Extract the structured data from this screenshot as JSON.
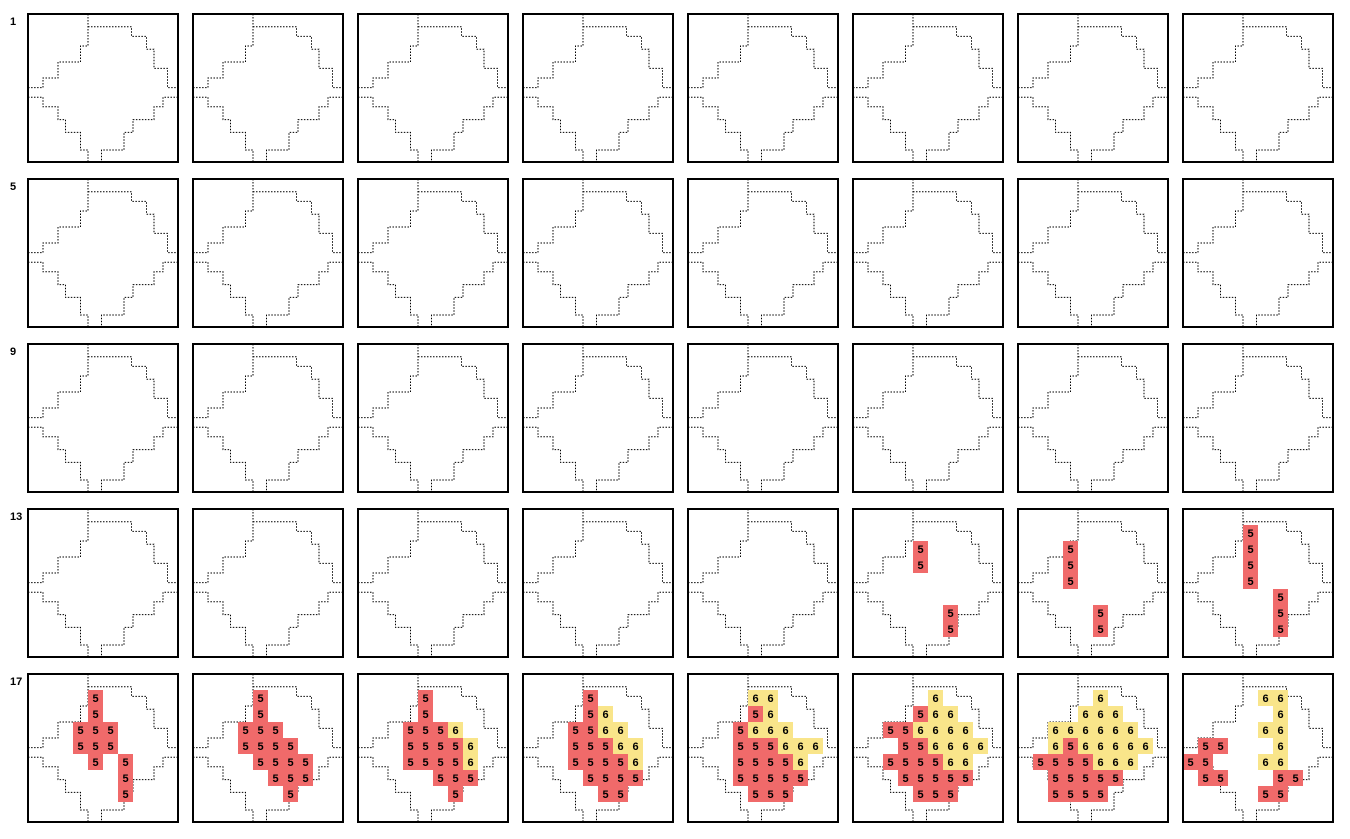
{
  "row_labels": [
    "1",
    "5",
    "9",
    "13",
    "17"
  ],
  "colors": {
    "5": "#f06a6a",
    "6": "#f9e58a",
    "frame": "#000000",
    "outline": "#000000"
  },
  "panels": [
    {
      "cells": []
    },
    {
      "cells": []
    },
    {
      "cells": []
    },
    {
      "cells": []
    },
    {
      "cells": []
    },
    {
      "cells": []
    },
    {
      "cells": []
    },
    {
      "cells": []
    },
    {
      "cells": []
    },
    {
      "cells": []
    },
    {
      "cells": []
    },
    {
      "cells": []
    },
    {
      "cells": []
    },
    {
      "cells": []
    },
    {
      "cells": []
    },
    {
      "cells": []
    },
    {
      "cells": []
    },
    {
      "cells": []
    },
    {
      "cells": []
    },
    {
      "cells": []
    },
    {
      "cells": []
    },
    {
      "cells": []
    },
    {
      "cells": []
    },
    {
      "cells": []
    },
    {
      "cells": []
    },
    {
      "cells": []
    },
    {
      "cells": []
    },
    {
      "cells": []
    },
    {
      "cells": []
    },
    {
      "cells": [
        [
          4,
          2,
          5
        ],
        [
          4,
          3,
          5
        ],
        [
          6,
          6,
          5
        ],
        [
          6,
          7,
          5
        ]
      ]
    },
    {
      "cells": [
        [
          3,
          2,
          5
        ],
        [
          3,
          3,
          5
        ],
        [
          3,
          4,
          5
        ],
        [
          5,
          6,
          5
        ],
        [
          5,
          7,
          5
        ]
      ]
    },
    {
      "cells": [
        [
          4,
          1,
          5
        ],
        [
          4,
          2,
          5
        ],
        [
          4,
          3,
          5
        ],
        [
          4,
          4,
          5
        ],
        [
          6,
          5,
          5
        ],
        [
          6,
          6,
          5
        ],
        [
          6,
          7,
          5
        ]
      ]
    },
    {
      "cells": [
        [
          4,
          1,
          5
        ],
        [
          4,
          2,
          5
        ],
        [
          3,
          3,
          5
        ],
        [
          4,
          3,
          5
        ],
        [
          5,
          3,
          5
        ],
        [
          3,
          4,
          5
        ],
        [
          4,
          4,
          5
        ],
        [
          5,
          4,
          5
        ],
        [
          4,
          5,
          5
        ],
        [
          6,
          5,
          5
        ],
        [
          6,
          6,
          5
        ],
        [
          6,
          7,
          5
        ]
      ]
    },
    {
      "cells": [
        [
          4,
          1,
          5
        ],
        [
          4,
          2,
          5
        ],
        [
          3,
          3,
          5
        ],
        [
          4,
          3,
          5
        ],
        [
          5,
          3,
          5
        ],
        [
          3,
          4,
          5
        ],
        [
          4,
          4,
          5
        ],
        [
          5,
          4,
          5
        ],
        [
          6,
          4,
          5
        ],
        [
          4,
          5,
          5
        ],
        [
          5,
          5,
          5
        ],
        [
          6,
          5,
          5
        ],
        [
          7,
          5,
          5
        ],
        [
          5,
          6,
          5
        ],
        [
          6,
          6,
          5
        ],
        [
          7,
          6,
          5
        ],
        [
          6,
          7,
          5
        ]
      ]
    },
    {
      "cells": [
        [
          4,
          1,
          5
        ],
        [
          4,
          2,
          5
        ],
        [
          3,
          3,
          5
        ],
        [
          4,
          3,
          5
        ],
        [
          5,
          3,
          5
        ],
        [
          6,
          3,
          6
        ],
        [
          3,
          4,
          5
        ],
        [
          4,
          4,
          5
        ],
        [
          5,
          4,
          5
        ],
        [
          6,
          4,
          5
        ],
        [
          7,
          4,
          6
        ],
        [
          3,
          5,
          5
        ],
        [
          4,
          5,
          5
        ],
        [
          5,
          5,
          5
        ],
        [
          6,
          5,
          5
        ],
        [
          7,
          5,
          6
        ],
        [
          5,
          6,
          5
        ],
        [
          6,
          6,
          5
        ],
        [
          7,
          6,
          5
        ],
        [
          6,
          7,
          5
        ]
      ]
    },
    {
      "cells": [
        [
          4,
          1,
          5
        ],
        [
          4,
          2,
          5
        ],
        [
          5,
          2,
          6
        ],
        [
          3,
          3,
          5
        ],
        [
          4,
          3,
          5
        ],
        [
          5,
          3,
          6
        ],
        [
          6,
          3,
          6
        ],
        [
          3,
          4,
          5
        ],
        [
          4,
          4,
          5
        ],
        [
          5,
          4,
          5
        ],
        [
          6,
          4,
          6
        ],
        [
          7,
          4,
          6
        ],
        [
          3,
          5,
          5
        ],
        [
          4,
          5,
          5
        ],
        [
          5,
          5,
          5
        ],
        [
          6,
          5,
          5
        ],
        [
          7,
          5,
          6
        ],
        [
          4,
          6,
          5
        ],
        [
          5,
          6,
          5
        ],
        [
          6,
          6,
          5
        ],
        [
          7,
          6,
          5
        ],
        [
          5,
          7,
          5
        ],
        [
          6,
          7,
          5
        ]
      ]
    },
    {
      "cells": [
        [
          4,
          1,
          6
        ],
        [
          5,
          1,
          6
        ],
        [
          4,
          2,
          5
        ],
        [
          5,
          2,
          6
        ],
        [
          3,
          3,
          5
        ],
        [
          4,
          3,
          6
        ],
        [
          5,
          3,
          6
        ],
        [
          6,
          3,
          6
        ],
        [
          3,
          4,
          5
        ],
        [
          4,
          4,
          5
        ],
        [
          5,
          4,
          5
        ],
        [
          6,
          4,
          6
        ],
        [
          7,
          4,
          6
        ],
        [
          8,
          4,
          6
        ],
        [
          3,
          5,
          5
        ],
        [
          4,
          5,
          5
        ],
        [
          5,
          5,
          5
        ],
        [
          6,
          5,
          5
        ],
        [
          7,
          5,
          6
        ],
        [
          3,
          6,
          5
        ],
        [
          4,
          6,
          5
        ],
        [
          5,
          6,
          5
        ],
        [
          6,
          6,
          5
        ],
        [
          7,
          6,
          5
        ],
        [
          4,
          7,
          5
        ],
        [
          5,
          7,
          5
        ],
        [
          6,
          7,
          5
        ]
      ]
    },
    {
      "cells": [
        [
          5,
          1,
          6
        ],
        [
          4,
          2,
          5
        ],
        [
          5,
          2,
          6
        ],
        [
          6,
          2,
          6
        ],
        [
          2,
          3,
          5
        ],
        [
          3,
          3,
          5
        ],
        [
          4,
          3,
          6
        ],
        [
          5,
          3,
          6
        ],
        [
          6,
          3,
          6
        ],
        [
          7,
          3,
          6
        ],
        [
          3,
          4,
          5
        ],
        [
          4,
          4,
          5
        ],
        [
          5,
          4,
          6
        ],
        [
          6,
          4,
          6
        ],
        [
          7,
          4,
          6
        ],
        [
          8,
          4,
          6
        ],
        [
          2,
          5,
          5
        ],
        [
          3,
          5,
          5
        ],
        [
          4,
          5,
          5
        ],
        [
          5,
          5,
          5
        ],
        [
          6,
          5,
          6
        ],
        [
          7,
          5,
          6
        ],
        [
          3,
          6,
          5
        ],
        [
          4,
          6,
          5
        ],
        [
          5,
          6,
          5
        ],
        [
          6,
          6,
          5
        ],
        [
          7,
          6,
          5
        ],
        [
          4,
          7,
          5
        ],
        [
          5,
          7,
          5
        ],
        [
          6,
          7,
          5
        ]
      ]
    },
    {
      "cells": [
        [
          5,
          1,
          6
        ],
        [
          4,
          2,
          6
        ],
        [
          5,
          2,
          6
        ],
        [
          6,
          2,
          6
        ],
        [
          2,
          3,
          6
        ],
        [
          3,
          3,
          6
        ],
        [
          4,
          3,
          6
        ],
        [
          5,
          3,
          6
        ],
        [
          6,
          3,
          6
        ],
        [
          7,
          3,
          6
        ],
        [
          2,
          4,
          6
        ],
        [
          3,
          4,
          5
        ],
        [
          4,
          4,
          6
        ],
        [
          5,
          4,
          6
        ],
        [
          6,
          4,
          6
        ],
        [
          7,
          4,
          6
        ],
        [
          8,
          4,
          6
        ],
        [
          1,
          5,
          5
        ],
        [
          2,
          5,
          5
        ],
        [
          3,
          5,
          5
        ],
        [
          4,
          5,
          5
        ],
        [
          5,
          5,
          6
        ],
        [
          6,
          5,
          6
        ],
        [
          7,
          5,
          6
        ],
        [
          2,
          6,
          5
        ],
        [
          3,
          6,
          5
        ],
        [
          4,
          6,
          5
        ],
        [
          5,
          6,
          5
        ],
        [
          6,
          6,
          5
        ],
        [
          2,
          7,
          5
        ],
        [
          3,
          7,
          5
        ],
        [
          4,
          7,
          5
        ],
        [
          5,
          7,
          5
        ]
      ]
    },
    {
      "cells": [
        [
          5,
          1,
          6
        ],
        [
          6,
          1,
          6
        ],
        [
          6,
          2,
          6
        ],
        [
          5,
          3,
          6
        ],
        [
          6,
          3,
          6
        ],
        [
          1,
          4,
          5
        ],
        [
          2,
          4,
          5
        ],
        [
          6,
          4,
          6
        ],
        [
          0,
          5,
          5
        ],
        [
          1,
          5,
          5
        ],
        [
          5,
          5,
          6
        ],
        [
          6,
          5,
          6
        ],
        [
          1,
          6,
          5
        ],
        [
          2,
          6,
          5
        ],
        [
          6,
          6,
          5
        ],
        [
          7,
          6,
          5
        ],
        [
          5,
          7,
          5
        ],
        [
          6,
          7,
          5
        ]
      ]
    }
  ]
}
